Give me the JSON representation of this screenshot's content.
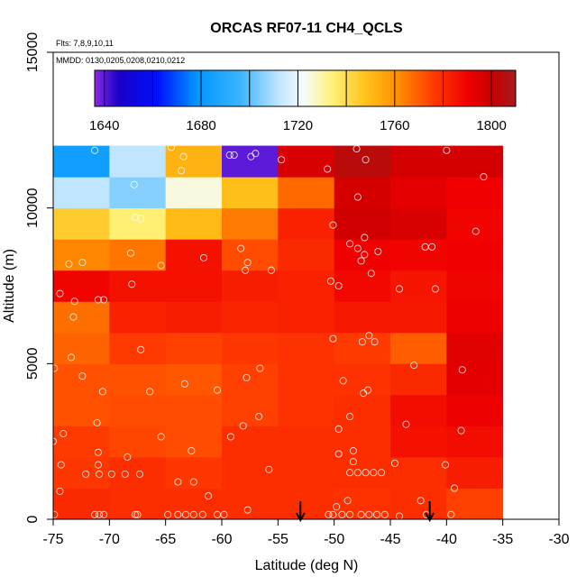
{
  "chart_data": {
    "type": "heatmap",
    "title": "ORCAS RF07-11 CH4_QCLS",
    "notes": [
      "Flts: 7,8,9,10,11",
      "MMDD: 0130,0205,0208,0210,0212"
    ],
    "xlabel": "Latitude (deg N)",
    "ylabel": "Altitude (m)",
    "xlim": [
      -75,
      -30
    ],
    "ylim": [
      0,
      15000
    ],
    "x_ticks": [
      "-75",
      "-70",
      "-65",
      "-60",
      "-55",
      "-50",
      "-45",
      "-40",
      "-35",
      "-30"
    ],
    "y_ticks": [
      "0",
      "5000",
      "10000",
      "15000"
    ],
    "colorbar": {
      "range": [
        1636,
        1810
      ],
      "ticks": [
        "1640",
        "1680",
        "1720",
        "1760",
        "1800"
      ],
      "tick_values": [
        1640,
        1680,
        1720,
        1760,
        1800
      ],
      "stops": [
        {
          "v": 1636,
          "c": "#8a2be2"
        },
        {
          "v": 1646,
          "c": "#1a00c8"
        },
        {
          "v": 1662,
          "c": "#0010ff"
        },
        {
          "v": 1678,
          "c": "#0095ff"
        },
        {
          "v": 1696,
          "c": "#3ab4ff"
        },
        {
          "v": 1712,
          "c": "#bfe5ff"
        },
        {
          "v": 1722,
          "c": "#f6fbff"
        },
        {
          "v": 1734,
          "c": "#fff27a"
        },
        {
          "v": 1748,
          "c": "#ffc21a"
        },
        {
          "v": 1762,
          "c": "#ff8c00"
        },
        {
          "v": 1776,
          "c": "#ff3a00"
        },
        {
          "v": 1790,
          "c": "#f00000"
        },
        {
          "v": 1800,
          "c": "#c80000"
        },
        {
          "v": 1810,
          "c": "#a61b1b"
        }
      ]
    },
    "cell_size": {
      "lat": 5,
      "alt": 1000
    },
    "lat_bins": [
      -75,
      -70,
      -65,
      -60,
      -55,
      -50,
      -45,
      -40
    ],
    "alt_bins": [
      0,
      1000,
      2000,
      3000,
      4000,
      5000,
      6000,
      7000,
      8000,
      9000,
      10000,
      11000
    ],
    "values": [
      [
        1780,
        1779,
        1779,
        1779,
        1779,
        1778,
        1779,
        1775
      ],
      [
        1777,
        1779,
        1777,
        1779,
        1779,
        1779,
        1779,
        1783
      ],
      [
        1776,
        1774,
        1773,
        1779,
        1779,
        1779,
        1786,
        1787
      ],
      [
        1772,
        1773,
        1773,
        1775,
        1778,
        1779,
        1787,
        1791
      ],
      [
        1772,
        1772,
        1771,
        1775,
        1778,
        1778,
        1780,
        1793
      ],
      [
        1769,
        1776,
        1775,
        1777,
        1778,
        1776,
        1770,
        1794
      ],
      [
        1767,
        1782,
        1783,
        1781,
        1782,
        1784,
        1784,
        1791
      ],
      [
        1789,
        1786,
        1786,
        1783,
        1782,
        1788,
        1785,
        1789
      ],
      [
        1763,
        1766,
        1786,
        1773,
        1780,
        1790,
        1789,
        1790
      ],
      [
        1745,
        1735,
        1750,
        1765,
        1782,
        1798,
        1796,
        1789
      ],
      [
        1712,
        1705,
        1725,
        1749,
        1768,
        1797,
        1793,
        1790
      ],
      [
        1683,
        1712,
        1752,
        1640,
        1796,
        1804,
        1797,
        1797
      ]
    ],
    "arrow_lats": [
      -53,
      -41.5
    ],
    "sample_points": [
      [
        -74.9,
        150
      ],
      [
        -71.3,
        150
      ],
      [
        -70.9,
        150
      ],
      [
        -70.5,
        150
      ],
      [
        -67.7,
        150
      ],
      [
        -67.5,
        150
      ],
      [
        -64.8,
        150
      ],
      [
        -63.9,
        150
      ],
      [
        -63.2,
        150
      ],
      [
        -62.5,
        150
      ],
      [
        -61.7,
        150
      ],
      [
        -60.4,
        150
      ],
      [
        -59.8,
        150
      ],
      [
        -57.7,
        300
      ],
      [
        -50.5,
        150
      ],
      [
        -50.1,
        150
      ],
      [
        -49.3,
        150
      ],
      [
        -48.6,
        150
      ],
      [
        -47.6,
        150
      ],
      [
        -46.9,
        150
      ],
      [
        -46.2,
        150
      ],
      [
        -45.5,
        150
      ],
      [
        -44.2,
        100
      ],
      [
        -41.8,
        150
      ],
      [
        -39.6,
        150
      ],
      [
        -74.4,
        900
      ],
      [
        -61.2,
        750
      ],
      [
        -49.8,
        400
      ],
      [
        -48.8,
        600
      ],
      [
        -42.3,
        600
      ],
      [
        -39.3,
        1000
      ],
      [
        -72.1,
        1450
      ],
      [
        -70.9,
        1450
      ],
      [
        -69.8,
        1450
      ],
      [
        -68.6,
        1450
      ],
      [
        -67.3,
        1450
      ],
      [
        -63.9,
        1200
      ],
      [
        -62.5,
        1200
      ],
      [
        -55.8,
        1600
      ],
      [
        -48.6,
        1500
      ],
      [
        -47.9,
        1500
      ],
      [
        -47.2,
        1500
      ],
      [
        -46.5,
        1500
      ],
      [
        -45.8,
        1500
      ],
      [
        -74.3,
        1750
      ],
      [
        -71,
        1750
      ],
      [
        -48.3,
        1850
      ],
      [
        -44.6,
        1800
      ],
      [
        -40.1,
        1750
      ],
      [
        -68.4,
        2000
      ],
      [
        -62.7,
        2200
      ],
      [
        -49.6,
        2100
      ],
      [
        -48.3,
        2200
      ],
      [
        -71,
        2150
      ],
      [
        -75,
        2500
      ],
      [
        -74.1,
        2750
      ],
      [
        -65.4,
        2650
      ],
      [
        -59.2,
        2650
      ],
      [
        -49.6,
        2900
      ],
      [
        -43.6,
        3050
      ],
      [
        -38.7,
        2850
      ],
      [
        -71.1,
        3100
      ],
      [
        -58.1,
        3000
      ],
      [
        -56.7,
        3300
      ],
      [
        -48.6,
        3300
      ],
      [
        -70.6,
        4100
      ],
      [
        -66.4,
        4100
      ],
      [
        -63.3,
        4350
      ],
      [
        -60.4,
        4150
      ],
      [
        -57.8,
        4550
      ],
      [
        -49.2,
        4450
      ],
      [
        -47.4,
        4050
      ],
      [
        -47,
        4150
      ],
      [
        -74.9,
        4850
      ],
      [
        -73.4,
        5200
      ],
      [
        -72.4,
        4600
      ],
      [
        -56.6,
        4850
      ],
      [
        -42.9,
        4950
      ],
      [
        -38.6,
        4800
      ],
      [
        -67.2,
        5450
      ],
      [
        -50.1,
        5800
      ],
      [
        -47.5,
        5700
      ],
      [
        -46.9,
        5900
      ],
      [
        -46.4,
        5700
      ],
      [
        -74.4,
        7250
      ],
      [
        -73.1,
        7000
      ],
      [
        -73.2,
        6500
      ],
      [
        -71,
        7050
      ],
      [
        -70.5,
        7050
      ],
      [
        -68,
        7550
      ],
      [
        -50.3,
        7650
      ],
      [
        -49.6,
        7500
      ],
      [
        -46.1,
        8600
      ],
      [
        -44.2,
        7400
      ],
      [
        -41,
        7400
      ],
      [
        -73.6,
        8200
      ],
      [
        -72.4,
        8250
      ],
      [
        -68.1,
        8550
      ],
      [
        -65.4,
        8150
      ],
      [
        -61.6,
        8400
      ],
      [
        -58.3,
        8700
      ],
      [
        -57.7,
        8250
      ],
      [
        -57.9,
        8000
      ],
      [
        -55.6,
        8000
      ],
      [
        -47.9,
        8700
      ],
      [
        -47.6,
        8300
      ],
      [
        -47.3,
        8500
      ],
      [
        -46.7,
        7900
      ],
      [
        -41.9,
        8750
      ],
      [
        -41.3,
        8750
      ],
      [
        -48.6,
        8850
      ],
      [
        -47.3,
        9050
      ],
      [
        -67.7,
        9700
      ],
      [
        -67.2,
        9650
      ],
      [
        -50.1,
        9450
      ],
      [
        -37.4,
        9250
      ],
      [
        -67.8,
        10750
      ],
      [
        -63.6,
        11200
      ],
      [
        -47.9,
        10350
      ],
      [
        -36.7,
        11000
      ],
      [
        -71.3,
        11850
      ],
      [
        -64.5,
        11950
      ],
      [
        -63.4,
        11650
      ],
      [
        -59.3,
        11700
      ],
      [
        -58.9,
        11700
      ],
      [
        -57.4,
        11650
      ],
      [
        -57,
        11750
      ],
      [
        -54.7,
        11550
      ],
      [
        -50.6,
        11250
      ],
      [
        -48,
        11900
      ],
      [
        -47.2,
        11550
      ],
      [
        -40,
        11850
      ]
    ]
  }
}
